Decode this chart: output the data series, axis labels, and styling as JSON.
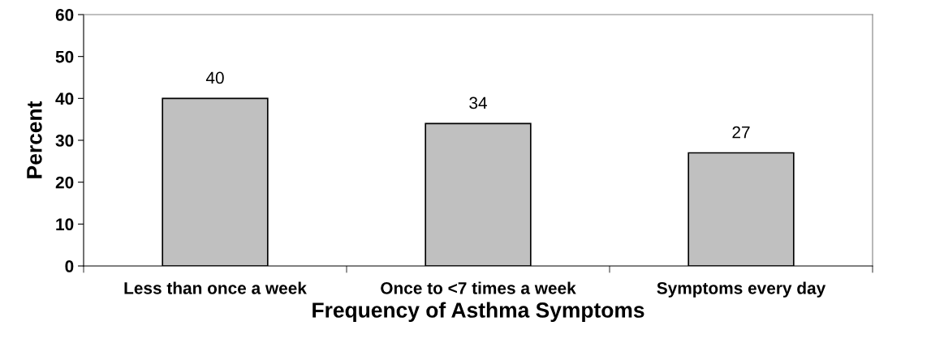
{
  "chart_data": {
    "type": "bar",
    "xlabel": "Frequency of Asthma Symptoms",
    "ylabel": "Percent",
    "categories": [
      "Less than once a week",
      "Once to <7 times a week",
      "Symptoms every day"
    ],
    "values": [
      40,
      34,
      27
    ],
    "color": "#c0c0c0",
    "data_labels": true,
    "ylim": [
      0,
      60
    ],
    "yticks": [
      0,
      10,
      20,
      30,
      40,
      50,
      60
    ],
    "grid": false,
    "legend": false
  }
}
